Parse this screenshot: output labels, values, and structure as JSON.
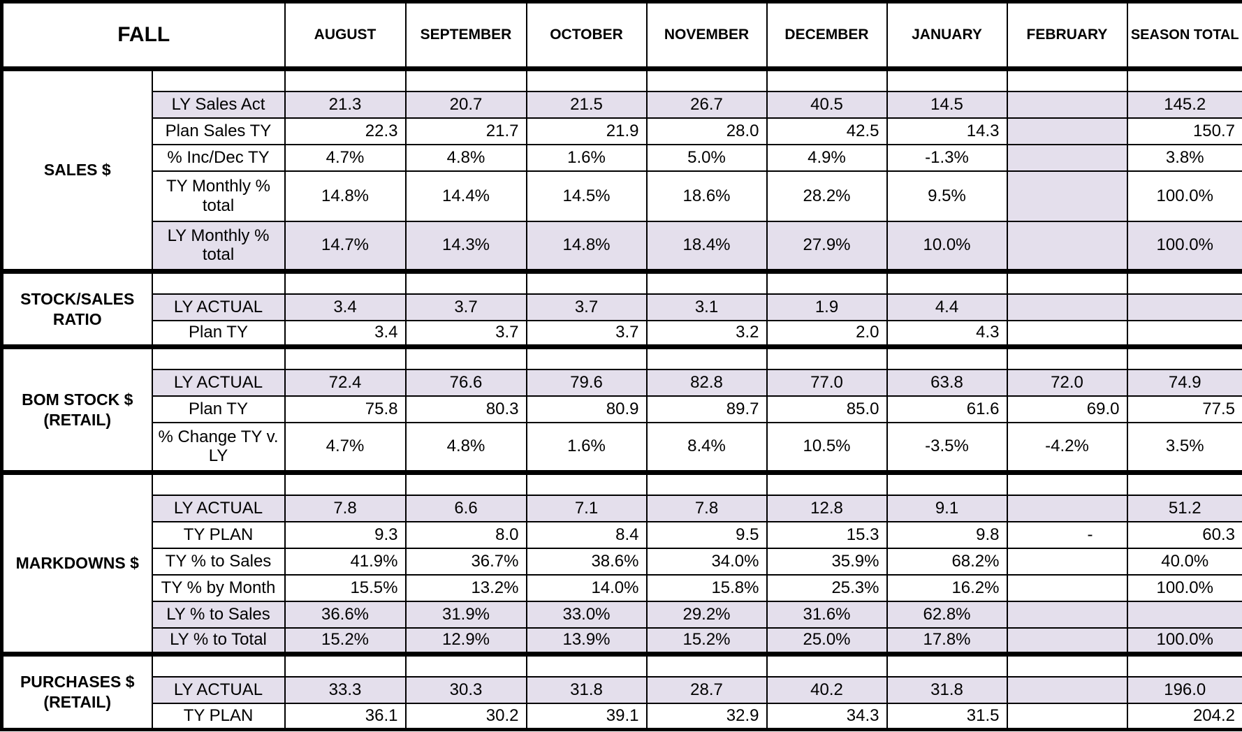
{
  "title": "FALL",
  "columns": [
    "AUGUST",
    "SEPTEMBER",
    "OCTOBER",
    "NOVEMBER",
    "DECEMBER",
    "JANUARY",
    "FEBRUARY",
    "SEASON TOTAL"
  ],
  "colors": {
    "shaded_row": "#E4DFEC",
    "border": "#000000",
    "background": "#FFFFFF"
  },
  "sections": [
    {
      "label": "SALES $",
      "rows": [
        {
          "type": "blank"
        },
        {
          "label": "LY Sales Act",
          "shaded": true,
          "align": "center",
          "values": [
            "21.3",
            "20.7",
            "21.5",
            "26.7",
            "40.5",
            "14.5",
            "",
            "145.2"
          ]
        },
        {
          "label": "Plan Sales TY",
          "align": "right",
          "shaded_cells": [
            6
          ],
          "values": [
            "22.3",
            "21.7",
            "21.9",
            "28.0",
            "42.5",
            "14.3",
            "",
            "150.7"
          ]
        },
        {
          "label": "% Inc/Dec TY",
          "align": "center",
          "shaded_cells": [
            6
          ],
          "values": [
            "4.7%",
            "4.8%",
            "1.6%",
            "5.0%",
            "4.9%",
            "-1.3%",
            "",
            "3.8%"
          ]
        },
        {
          "label": "TY Monthly % total",
          "align": "center",
          "tall": true,
          "shaded_cells": [
            6
          ],
          "values": [
            "14.8%",
            "14.4%",
            "14.5%",
            "18.6%",
            "28.2%",
            "9.5%",
            "",
            "100.0%"
          ]
        },
        {
          "label": "LY Monthly % total",
          "shaded": true,
          "align": "center",
          "tall": true,
          "values": [
            "14.7%",
            "14.3%",
            "14.8%",
            "18.4%",
            "27.9%",
            "10.0%",
            "",
            "100.0%"
          ]
        }
      ]
    },
    {
      "label": "STOCK/SALES RATIO",
      "rows": [
        {
          "type": "blank"
        },
        {
          "label": "LY ACTUAL",
          "shaded": true,
          "align": "center",
          "values": [
            "3.4",
            "3.7",
            "3.7",
            "3.1",
            "1.9",
            "4.4",
            "",
            ""
          ]
        },
        {
          "label": "Plan TY",
          "align": "right",
          "values": [
            "3.4",
            "3.7",
            "3.7",
            "3.2",
            "2.0",
            "4.3",
            "",
            ""
          ]
        }
      ]
    },
    {
      "label": "BOM STOCK $ (RETAIL)",
      "rows": [
        {
          "type": "blank"
        },
        {
          "label": "LY ACTUAL",
          "shaded": true,
          "align": "center",
          "values": [
            "72.4",
            "76.6",
            "79.6",
            "82.8",
            "77.0",
            "63.8",
            "72.0",
            "74.9"
          ]
        },
        {
          "label": "Plan TY",
          "align": "right",
          "values": [
            "75.8",
            "80.3",
            "80.9",
            "89.7",
            "85.0",
            "61.6",
            "69.0",
            "77.5"
          ]
        },
        {
          "label": "% Change TY v. LY",
          "align": "center",
          "tall": true,
          "values": [
            "4.7%",
            "4.8%",
            "1.6%",
            "8.4%",
            "10.5%",
            "-3.5%",
            "-4.2%",
            "3.5%"
          ]
        }
      ]
    },
    {
      "label": "MARKDOWNS $",
      "rows": [
        {
          "type": "blank"
        },
        {
          "label": "LY ACTUAL",
          "shaded": true,
          "align": "center",
          "values": [
            "7.8",
            "6.6",
            "7.1",
            "7.8",
            "12.8",
            "9.1",
            "",
            "51.2"
          ]
        },
        {
          "label": "TY PLAN",
          "align": "right",
          "values": [
            "9.3",
            "8.0",
            "8.4",
            "9.5",
            "15.3",
            "9.8",
            "-",
            "60.3"
          ]
        },
        {
          "label": "TY % to Sales",
          "align": "right",
          "align_total": "center",
          "values": [
            "41.9%",
            "36.7%",
            "38.6%",
            "34.0%",
            "35.9%",
            "68.2%",
            "",
            "40.0%"
          ]
        },
        {
          "label": "TY % by Month",
          "align": "right",
          "align_total": "center",
          "values": [
            "15.5%",
            "13.2%",
            "14.0%",
            "15.8%",
            "25.3%",
            "16.2%",
            "",
            "100.0%"
          ]
        },
        {
          "label": "LY % to Sales",
          "shaded": true,
          "align": "center",
          "values": [
            "36.6%",
            "31.9%",
            "33.0%",
            "29.2%",
            "31.6%",
            "62.8%",
            "",
            ""
          ]
        },
        {
          "label": "LY % to Total",
          "shaded": true,
          "align": "center",
          "values": [
            "15.2%",
            "12.9%",
            "13.9%",
            "15.2%",
            "25.0%",
            "17.8%",
            "",
            "100.0%"
          ]
        }
      ]
    },
    {
      "label": "PURCHASES $ (RETAIL)",
      "rows": [
        {
          "type": "blank"
        },
        {
          "label": "LY ACTUAL",
          "shaded": true,
          "align": "center",
          "values": [
            "33.3",
            "30.3",
            "31.8",
            "28.7",
            "40.2",
            "31.8",
            "",
            "196.0"
          ]
        },
        {
          "label": "TY PLAN",
          "align": "right",
          "values": [
            "36.1",
            "30.2",
            "39.1",
            "32.9",
            "34.3",
            "31.5",
            "",
            "204.2"
          ]
        }
      ]
    }
  ]
}
